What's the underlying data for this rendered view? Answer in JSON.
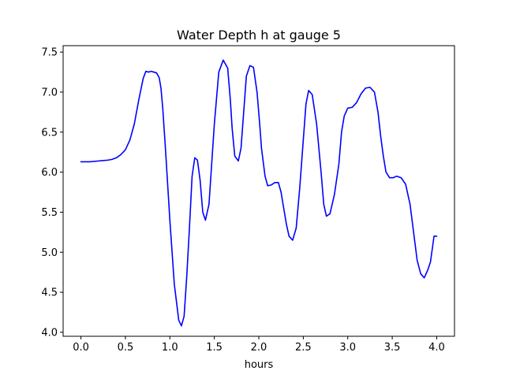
{
  "chart_data": {
    "type": "line",
    "title": "Water Depth h at gauge 5",
    "xlabel": "hours",
    "ylabel": "",
    "xlim": [
      -0.2,
      4.2
    ],
    "ylim": [
      3.95,
      7.58
    ],
    "xticks": [
      0.0,
      0.5,
      1.0,
      1.5,
      2.0,
      2.5,
      3.0,
      3.5,
      4.0
    ],
    "xtick_labels": [
      "0.0",
      "0.5",
      "1.0",
      "1.5",
      "2.0",
      "2.5",
      "3.0",
      "3.5",
      "4.0"
    ],
    "yticks": [
      4.0,
      4.5,
      5.0,
      5.5,
      6.0,
      6.5,
      7.0,
      7.5
    ],
    "ytick_labels": [
      "4.0",
      "4.5",
      "5.0",
      "5.5",
      "6.0",
      "6.5",
      "7.0",
      "7.5"
    ],
    "grid": false,
    "series": [
      {
        "color": "#0000ff",
        "x": [
          0.0,
          0.1,
          0.2,
          0.3,
          0.35,
          0.4,
          0.45,
          0.5,
          0.55,
          0.6,
          0.65,
          0.7,
          0.73,
          0.76,
          0.79,
          0.82,
          0.85,
          0.88,
          0.9,
          0.92,
          0.95,
          1.0,
          1.05,
          1.1,
          1.13,
          1.16,
          1.19,
          1.22,
          1.25,
          1.28,
          1.31,
          1.34,
          1.37,
          1.4,
          1.44,
          1.47,
          1.5,
          1.55,
          1.6,
          1.65,
          1.68,
          1.7,
          1.73,
          1.77,
          1.8,
          1.83,
          1.86,
          1.9,
          1.94,
          1.98,
          2.01,
          2.03,
          2.07,
          2.1,
          2.14,
          2.18,
          2.22,
          2.25,
          2.28,
          2.31,
          2.34,
          2.38,
          2.42,
          2.46,
          2.5,
          2.53,
          2.56,
          2.6,
          2.65,
          2.7,
          2.73,
          2.76,
          2.8,
          2.85,
          2.9,
          2.93,
          2.96,
          3.0,
          3.05,
          3.1,
          3.15,
          3.2,
          3.25,
          3.3,
          3.34,
          3.37,
          3.4,
          3.43,
          3.47,
          3.51,
          3.55,
          3.6,
          3.65,
          3.7,
          3.74,
          3.78,
          3.82,
          3.86,
          3.9,
          3.93,
          3.97,
          4.0
        ],
        "y": [
          6.13,
          6.13,
          6.14,
          6.15,
          6.16,
          6.18,
          6.22,
          6.28,
          6.4,
          6.6,
          6.9,
          7.17,
          7.26,
          7.25,
          7.26,
          7.25,
          7.24,
          7.18,
          7.05,
          6.8,
          6.3,
          5.4,
          4.6,
          4.15,
          4.08,
          4.2,
          4.7,
          5.3,
          5.95,
          6.18,
          6.15,
          5.9,
          5.5,
          5.4,
          5.6,
          6.1,
          6.6,
          7.25,
          7.4,
          7.3,
          6.9,
          6.55,
          6.2,
          6.14,
          6.3,
          6.75,
          7.2,
          7.33,
          7.31,
          7.0,
          6.6,
          6.3,
          5.95,
          5.83,
          5.84,
          5.87,
          5.87,
          5.75,
          5.55,
          5.35,
          5.2,
          5.15,
          5.3,
          5.8,
          6.4,
          6.85,
          7.02,
          6.97,
          6.6,
          6.0,
          5.6,
          5.45,
          5.48,
          5.72,
          6.1,
          6.5,
          6.7,
          6.8,
          6.81,
          6.87,
          6.98,
          7.05,
          7.06,
          7.0,
          6.75,
          6.45,
          6.2,
          6.0,
          5.93,
          5.93,
          5.95,
          5.93,
          5.85,
          5.6,
          5.25,
          4.9,
          4.73,
          4.68,
          4.78,
          4.88,
          5.2,
          5.2
        ]
      }
    ]
  }
}
